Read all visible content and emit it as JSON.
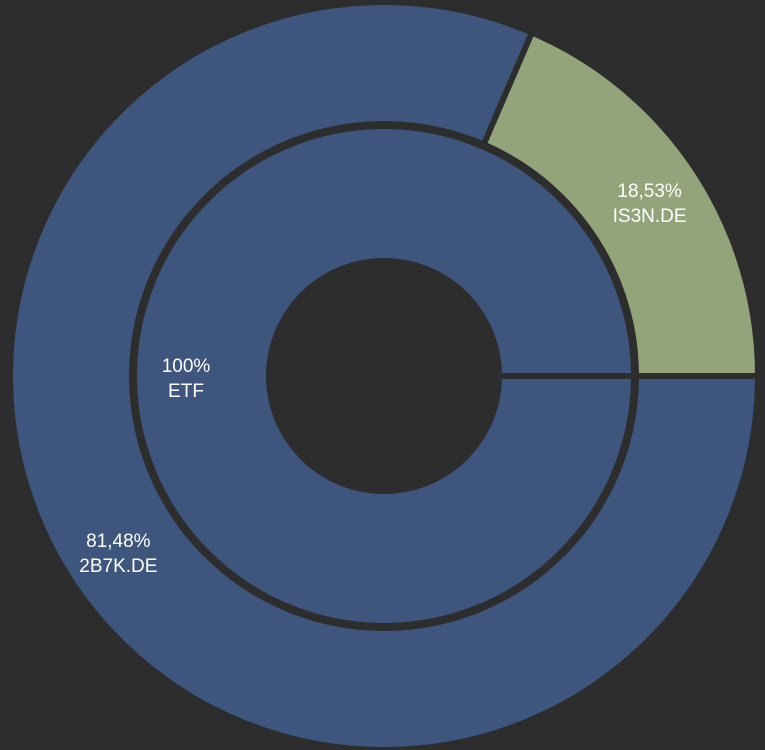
{
  "chart_data": {
    "type": "pie",
    "variant": "nested-donut",
    "background": "#2d2d2d",
    "start_angle_deg": 0,
    "rings": [
      {
        "name": "inner",
        "slices": [
          {
            "label": "ETF",
            "percent_label": "100%",
            "value": 100,
            "color": "#3e567e"
          }
        ]
      },
      {
        "name": "outer",
        "slices": [
          {
            "label": "IS3N.DE",
            "percent_label": "18,53%",
            "value": 18.53,
            "color": "#93a47b"
          },
          {
            "label": "2B7K.DE",
            "percent_label": "81,48%",
            "value": 81.48,
            "color": "#3e567e"
          }
        ]
      }
    ]
  }
}
